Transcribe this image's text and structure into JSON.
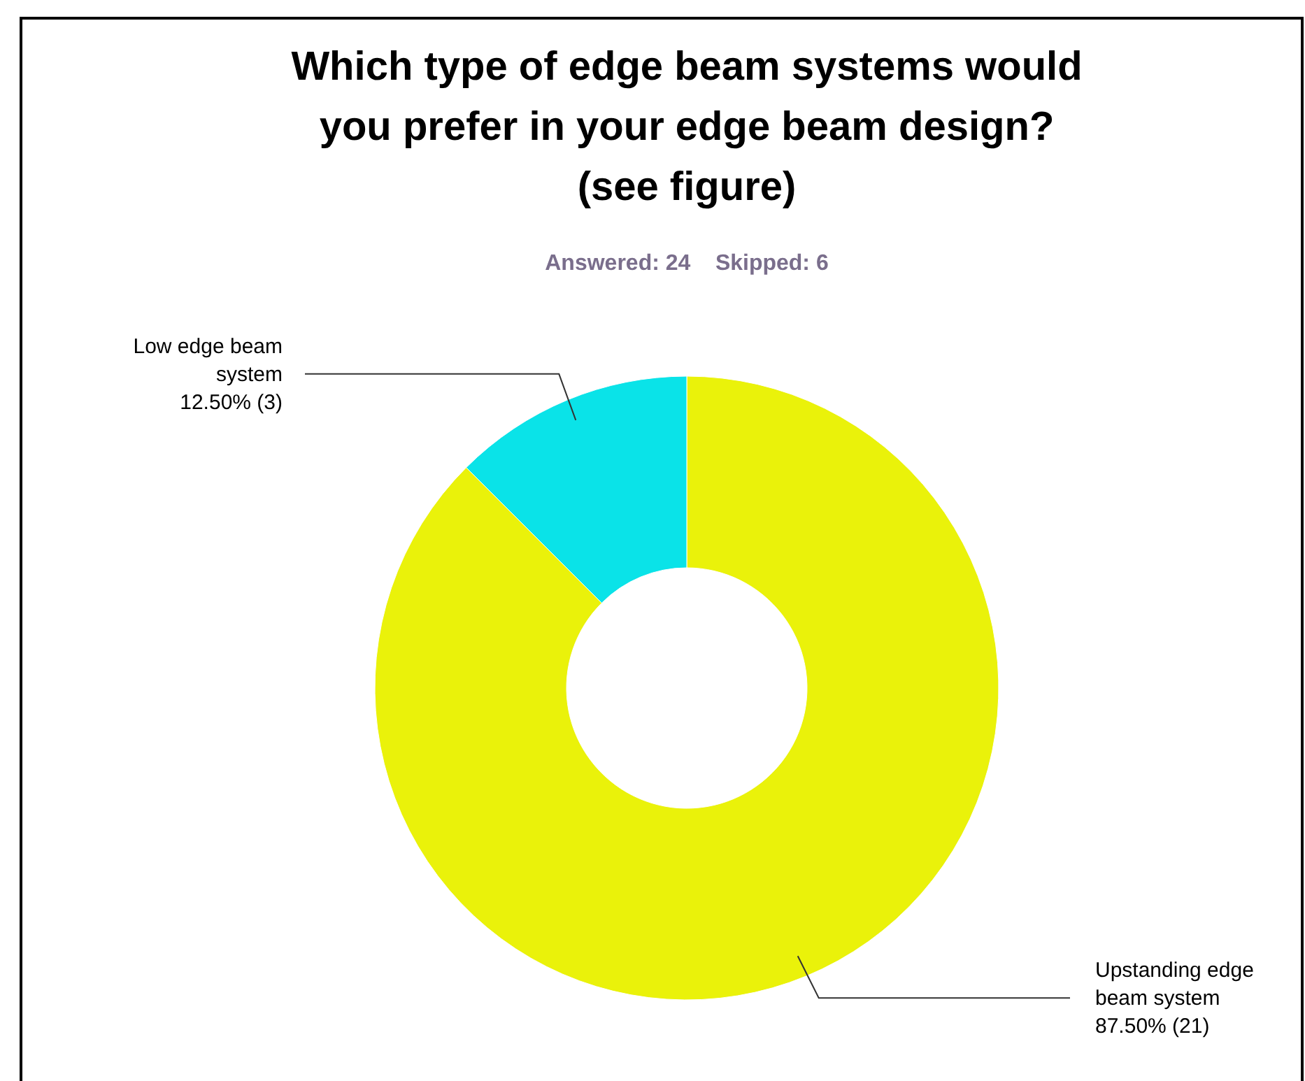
{
  "chart_data": {
    "type": "donut",
    "title": "Which type of edge beam systems would you prefer in your edge beam design? (see figure)",
    "subtitle": "Answered: 24    Skipped: 6",
    "categories": [
      "Upstanding edge beam system",
      "Low edge beam system"
    ],
    "values": [
      87.5,
      12.5
    ],
    "colors": [
      "#eaf20a",
      "#0ae3e8"
    ],
    "value_labels": [
      "87.50% (21)",
      "12.50% (3)"
    ]
  }
}
